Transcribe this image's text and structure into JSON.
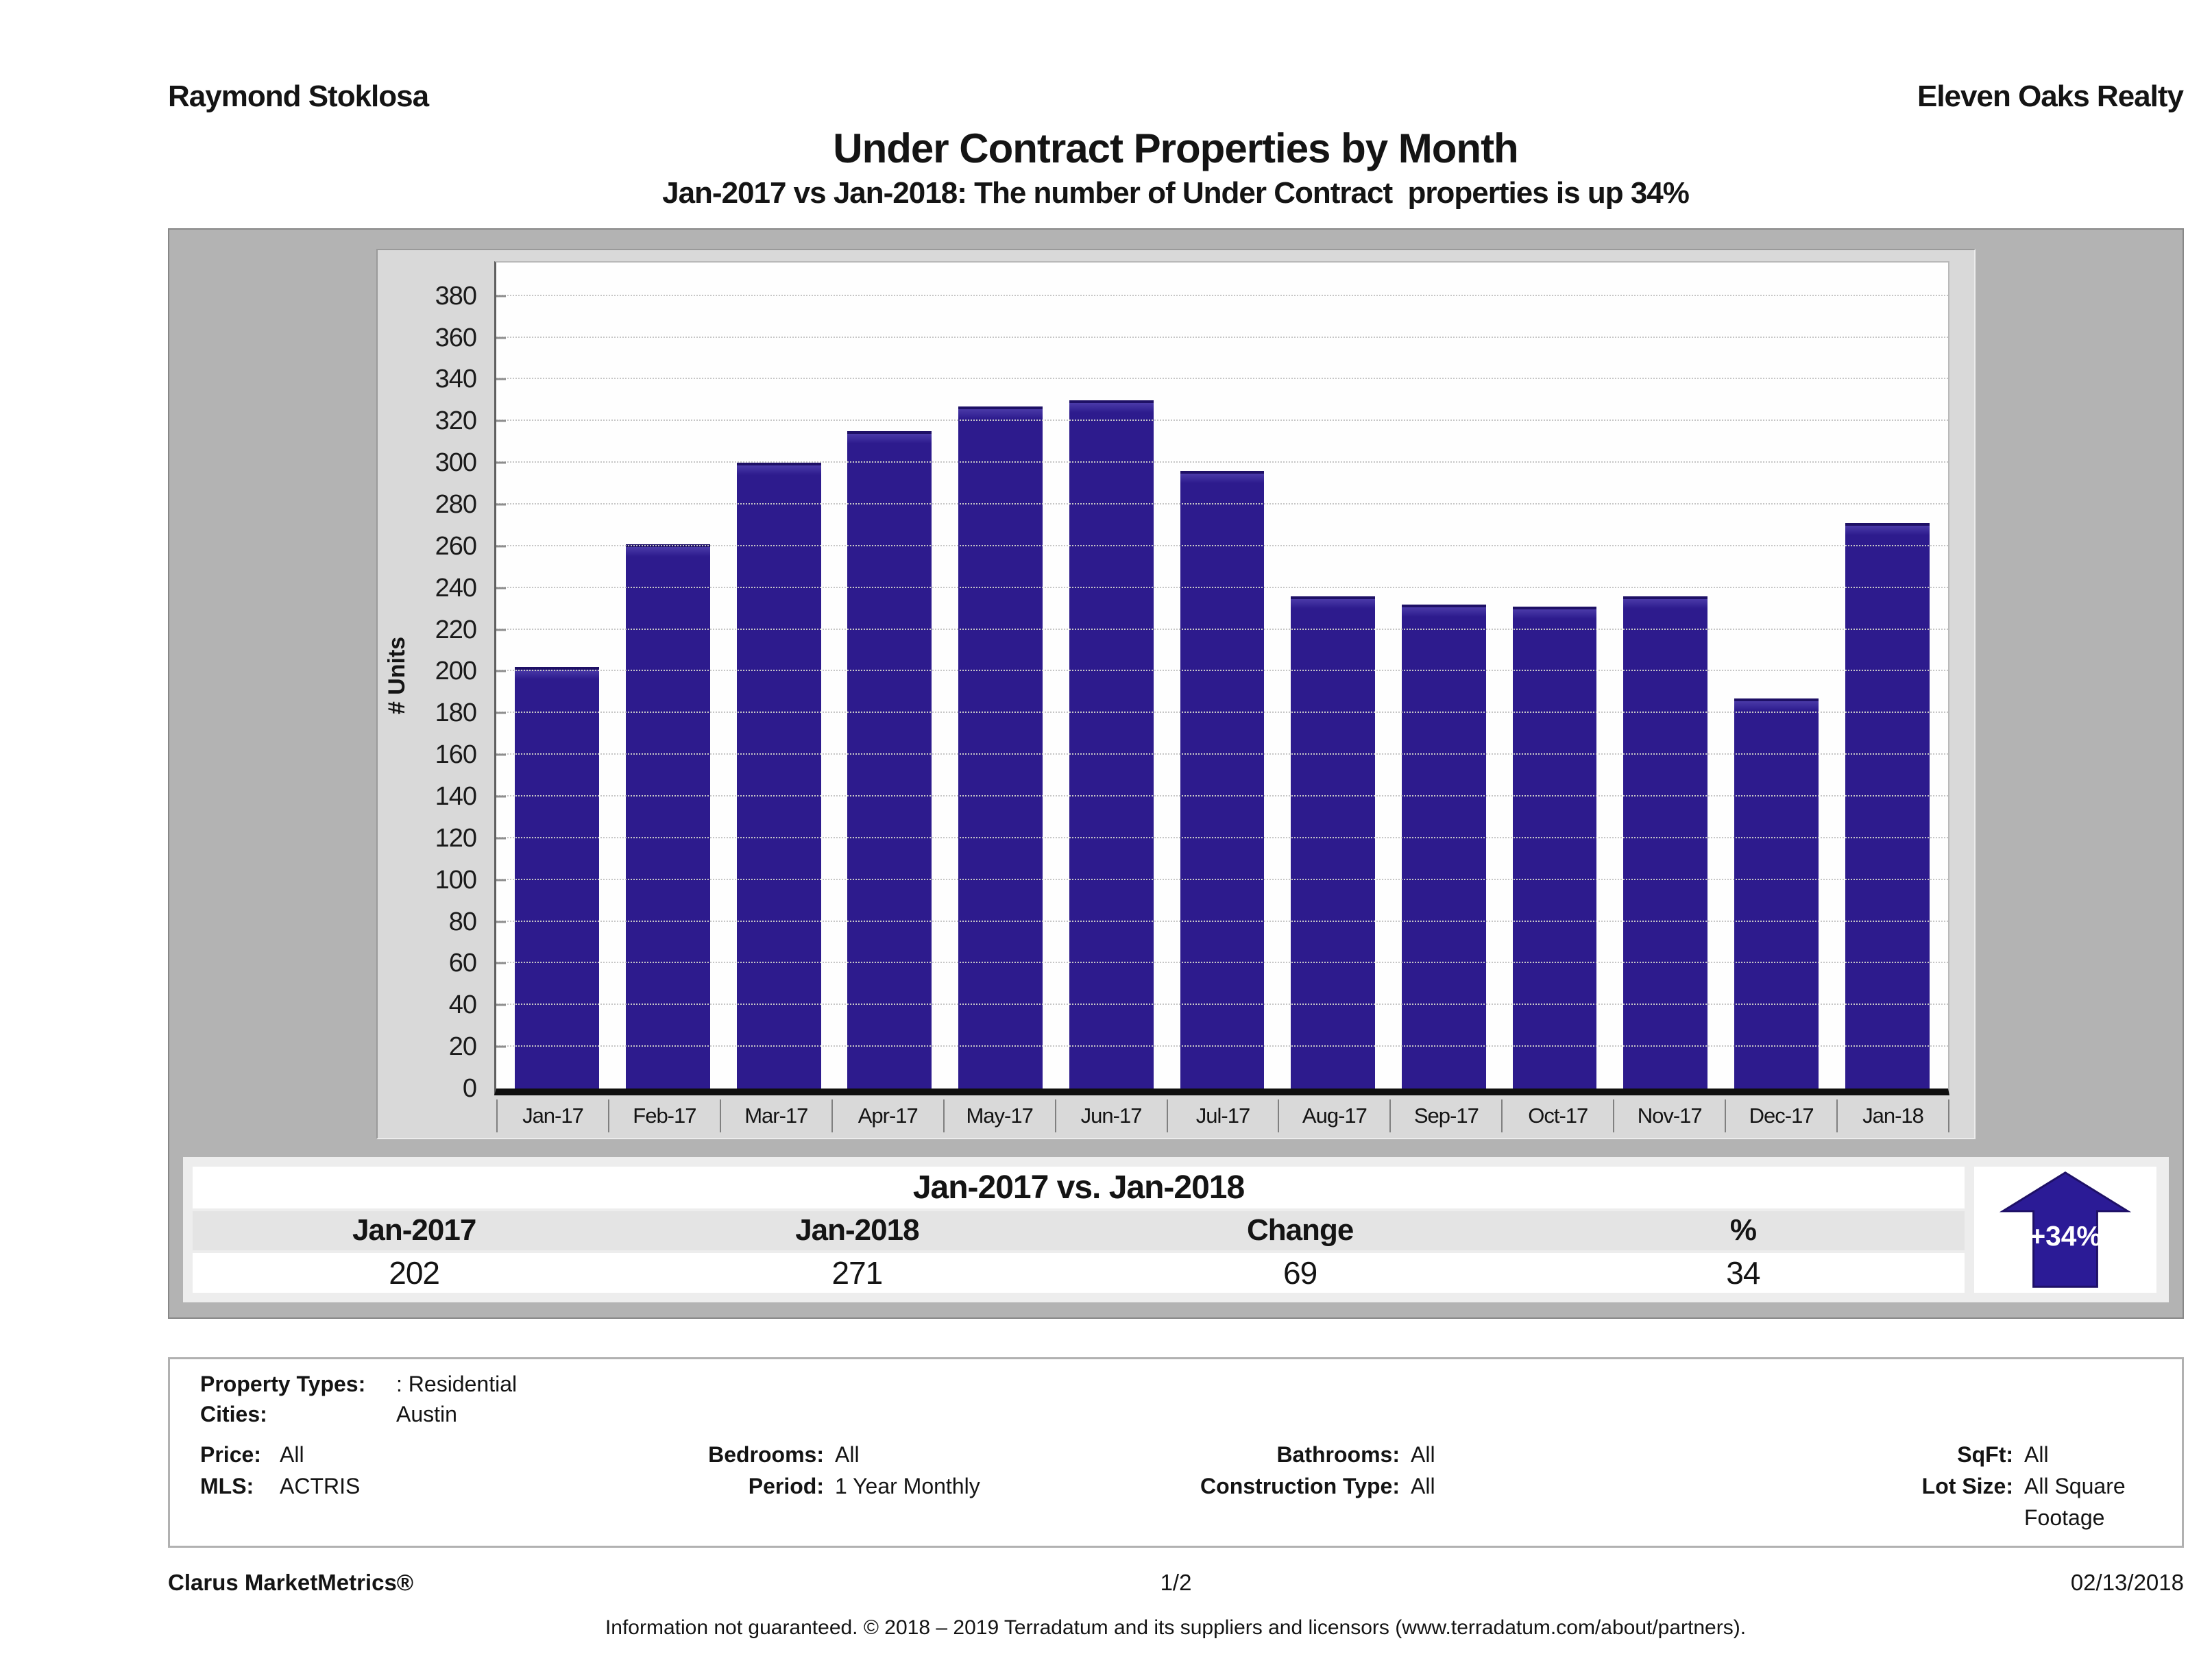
{
  "header": {
    "agent": "Raymond Stoklosa",
    "company": "Eleven Oaks Realty",
    "title": "Under Contract Properties by Month",
    "subtitle": "Jan-2017 vs Jan-2018: The number of Under Contract  properties is up 34%"
  },
  "chart_data": {
    "type": "bar",
    "title": "Under Contract Properties by Month",
    "categories": [
      "Jan-17",
      "Feb-17",
      "Mar-17",
      "Apr-17",
      "May-17",
      "Jun-17",
      "Jul-17",
      "Aug-17",
      "Sep-17",
      "Oct-17",
      "Nov-17",
      "Dec-17",
      "Jan-18"
    ],
    "values": [
      202,
      261,
      300,
      315,
      327,
      330,
      296,
      236,
      232,
      231,
      236,
      187,
      271
    ],
    "xlabel": "",
    "ylabel": "# Units",
    "ylim": [
      0,
      396
    ],
    "ytick_step": 20,
    "ytick_max": 380,
    "grid": "horizontal-dotted",
    "legend": "none"
  },
  "comparison": {
    "title": "Jan-2017 vs. Jan-2018",
    "columns": [
      "Jan-2017",
      "Jan-2018",
      "Change",
      "%"
    ],
    "values": [
      "202",
      "271",
      "69",
      "34"
    ],
    "badge": "+34%"
  },
  "details": {
    "property_types": {
      "label": "Property Types:",
      "value": ": Residential"
    },
    "cities": {
      "label": "Cities:",
      "value": "Austin"
    },
    "price": {
      "label": "Price:",
      "value": "All"
    },
    "bedrooms": {
      "label": "Bedrooms:",
      "value": "All"
    },
    "bathrooms": {
      "label": "Bathrooms:",
      "value": "All"
    },
    "sqft": {
      "label": "SqFt:",
      "value": "All"
    },
    "mls": {
      "label": "MLS:",
      "value": "ACTRIS"
    },
    "period": {
      "label": "Period:",
      "value": "1 Year Monthly"
    },
    "construction_type": {
      "label": "Construction Type:",
      "value": "All"
    },
    "lot_size": {
      "label": "Lot Size:",
      "value": "All Square Footage"
    }
  },
  "footer": {
    "product": "Clarus MarketMetrics®",
    "page": "1/2",
    "date": "02/13/2018",
    "disclaimer": "Information not guaranteed. © 2018 – 2019 Terradatum and its suppliers and licensors (www.terradatum.com/about/partners)."
  },
  "colors": {
    "bar": "#2d1b8d",
    "bar_top": "#1e1066",
    "arrow": "#2b1b96",
    "panel_gray": "#b3b3b3",
    "chart_box_gray": "#d9d9d9",
    "table_strip_gray": "#ededed",
    "header_row_gray": "#e4e4e4"
  }
}
